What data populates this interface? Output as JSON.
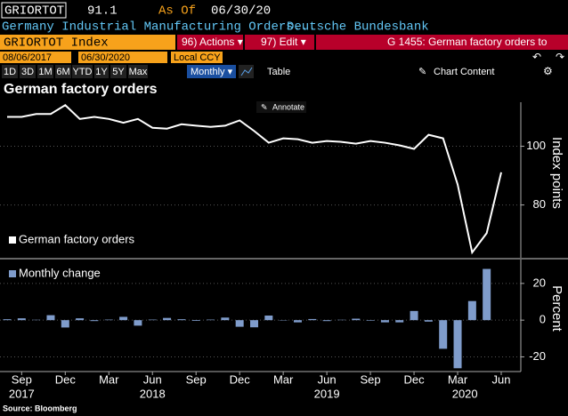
{
  "header": {
    "ticker": "GRIORTOT",
    "last": "91.1",
    "as_of_label": "As Of",
    "as_of": "06/30/20",
    "description": "Germany Industrial Manufacturing Orders...",
    "source_name": "Deutsche Bundesbank"
  },
  "toolbar": {
    "security": "GRIORTOT Index",
    "actions": "96) Actions ▾",
    "edit": "97) Edit ▾",
    "chart_ref": "G 1455: German factory orders to",
    "start_date": "08/06/2017",
    "end_date": "06/30/2020",
    "currency": "Local CCY",
    "periods": [
      "1D",
      "3D",
      "1M",
      "6M",
      "YTD",
      "1Y",
      "5Y",
      "Max"
    ],
    "frequency": "Monthly ▾",
    "table": "Table",
    "chart_content": "Chart Content",
    "annotate": "Annotate"
  },
  "title": "German factory orders",
  "footer": "Source: Bloomberg",
  "chart_data": [
    {
      "type": "line",
      "ylabel": "Index points",
      "ylim": [
        62,
        115
      ],
      "yticks": [
        80,
        100
      ],
      "grid": true,
      "legend": "bottom-left",
      "series": [
        {
          "name": "German factory orders",
          "color": "#ffffff",
          "values": [
            110,
            110,
            111,
            111,
            114,
            109.3,
            110,
            109.3,
            108,
            109.3,
            106.3,
            106,
            107.5,
            107,
            106.6,
            107,
            108.8,
            105.2,
            101.2,
            102.7,
            102.4,
            101.2,
            101.8,
            101.5,
            100.9,
            101.8,
            101.2,
            100.3,
            99.1,
            103.9,
            102.7,
            87,
            63.8,
            70.4,
            91.1
          ]
        }
      ]
    },
    {
      "type": "bar",
      "ylabel": "Percent",
      "ylim": [
        -28,
        33
      ],
      "yticks": [
        -20,
        0,
        20
      ],
      "grid": true,
      "legend": "top-left",
      "categories": [
        null,
        "Sep",
        null,
        null,
        "Dec",
        null,
        null,
        "Mar",
        null,
        null,
        "Jun",
        null,
        null,
        "Sep",
        null,
        null,
        "Dec",
        null,
        null,
        "Mar",
        null,
        null,
        "Jun",
        null,
        null,
        "Sep",
        null,
        null,
        "Dec",
        null,
        null,
        "Mar",
        null,
        null,
        "Jun"
      ],
      "x_group_labels": [
        {
          "value": 1,
          "label": "2017"
        },
        {
          "value": 10,
          "label": "2018"
        },
        {
          "value": 22,
          "label": "2019"
        },
        {
          "value": 31.5,
          "label": "2020"
        }
      ],
      "series": [
        {
          "name": "Monthly change",
          "color": "#7f9ccb",
          "values": [
            0.5,
            1.0,
            0.2,
            2.7,
            -4,
            1,
            -0.5,
            0.3,
            1.8,
            -3,
            0.3,
            1.2,
            0.5,
            -0.4,
            0.3,
            1.4,
            -3.6,
            -3.9,
            2.5,
            -0.2,
            -1.2,
            0.6,
            -0.5,
            0.2,
            0.8,
            -0.3,
            -1.2,
            -1.2,
            5,
            -0.8,
            -15.6,
            -26.2,
            10.4,
            27.9,
            0
          ]
        }
      ]
    }
  ]
}
